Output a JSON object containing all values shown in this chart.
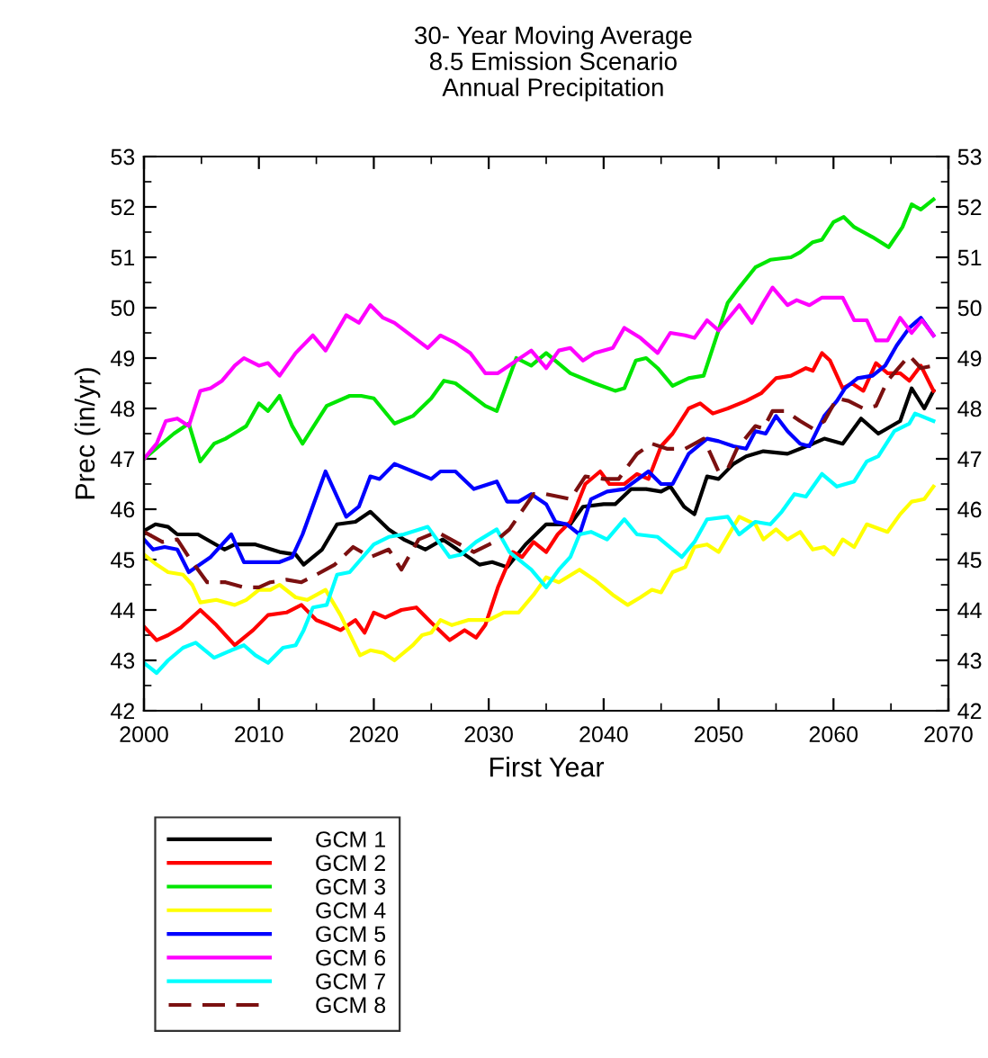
{
  "chart_data": {
    "type": "line",
    "title": "30- Year Moving Average\n8.5 Emission Scenario\nAnnual Precipitation",
    "xlabel": "First Year",
    "ylabel": "Prec (in/yr)",
    "xlim": [
      2000,
      2070
    ],
    "xticks": [
      2000,
      2010,
      2020,
      2030,
      2040,
      2050,
      2060,
      2070
    ],
    "ylim": [
      42,
      53
    ],
    "yticks": [
      42,
      43,
      44,
      45,
      46,
      47,
      48,
      49,
      50,
      51,
      52,
      53
    ],
    "y2lim": [
      42,
      53
    ],
    "y2ticks": [
      42,
      43,
      44,
      45,
      46,
      47,
      48,
      49,
      50,
      51,
      52,
      53
    ],
    "grid": false,
    "legend": "bottom left",
    "marker": "none",
    "series": [
      {
        "name": "GCM 1",
        "color": "#000000",
        "line_style": "solid",
        "x": [
          2000,
          2001,
          2002.1,
          2002.9,
          2004.7,
          2007,
          2007.9,
          2009.7,
          2011.8,
          2013.2,
          2013.9,
          2015.5,
          2016.8,
          2018.4,
          2019.7,
          2021.3,
          2022.6,
          2024.5,
          2026,
          2027.6,
          2029.2,
          2030.3,
          2031.6,
          2033.2,
          2035,
          2037.1,
          2038.2,
          2040,
          2041,
          2042.4,
          2043.7,
          2045,
          2045.8,
          2047,
          2047.9,
          2049,
          2050,
          2051.3,
          2052.4,
          2053.9,
          2056,
          2058.2,
          2059.2,
          2060.8,
          2062.4,
          2063.9,
          2065.8,
          2066.8,
          2067.9,
          2068.7
        ],
        "values": [
          45.57,
          45.7,
          45.65,
          45.5,
          45.5,
          45.2,
          45.3,
          45.3,
          45.15,
          45.1,
          44.9,
          45.2,
          45.7,
          45.75,
          45.95,
          45.6,
          45.4,
          45.2,
          45.4,
          45.15,
          44.9,
          44.95,
          44.85,
          45.3,
          45.7,
          45.7,
          46.05,
          46.1,
          46.1,
          46.4,
          46.4,
          46.35,
          46.45,
          46.05,
          45.9,
          46.65,
          46.6,
          46.9,
          47.05,
          47.15,
          47.1,
          47.3,
          47.4,
          47.3,
          47.8,
          47.5,
          47.75,
          48.4,
          48.0,
          48.35
        ]
      },
      {
        "name": "GCM 2",
        "color": "#ff0000",
        "line_style": "solid",
        "x": [
          2000,
          2001.1,
          2002.1,
          2003.2,
          2004.9,
          2006.3,
          2007.9,
          2009.5,
          2010.8,
          2012.4,
          2013.7,
          2015,
          2016.1,
          2017.1,
          2018.4,
          2019.2,
          2020,
          2021,
          2022.4,
          2023.7,
          2025,
          2026.6,
          2027.9,
          2028.9,
          2029.7,
          2030.8,
          2032.1,
          2032.9,
          2033.9,
          2035,
          2036,
          2037.1,
          2038.4,
          2039.7,
          2040.5,
          2041.8,
          2042.9,
          2043.9,
          2045,
          2046,
          2047.4,
          2048.4,
          2049.5,
          2050.8,
          2052.4,
          2053.7,
          2055,
          2056.3,
          2057.6,
          2058.2,
          2059,
          2059.7,
          2060.8,
          2061.6,
          2062.6,
          2063.7,
          2064.7,
          2065.8,
          2066.6,
          2067.6,
          2068.7
        ],
        "values": [
          43.67,
          43.4,
          43.5,
          43.65,
          44.0,
          43.7,
          43.3,
          43.6,
          43.9,
          43.95,
          44.1,
          43.8,
          43.7,
          43.6,
          43.8,
          43.55,
          43.95,
          43.85,
          44.0,
          44.05,
          43.75,
          43.4,
          43.6,
          43.45,
          43.7,
          44.45,
          45.15,
          45.05,
          45.35,
          45.15,
          45.5,
          45.75,
          46.5,
          46.75,
          46.5,
          46.5,
          46.7,
          46.6,
          47.25,
          47.5,
          48.0,
          48.1,
          47.9,
          48.0,
          48.15,
          48.3,
          48.6,
          48.65,
          48.8,
          48.75,
          49.1,
          48.95,
          48.4,
          48.5,
          48.35,
          48.9,
          48.7,
          48.7,
          48.55,
          48.85,
          48.35
        ]
      },
      {
        "name": "GCM 3",
        "color": "#00e600",
        "line_style": "solid",
        "x": [
          2000,
          2001.3,
          2002.6,
          2003.9,
          2004.9,
          2006.1,
          2007.1,
          2008.9,
          2010,
          2010.8,
          2011.8,
          2012.9,
          2013.8,
          2015.9,
          2017.9,
          2018.9,
          2020,
          2021.8,
          2023.4,
          2025,
          2026.1,
          2027.1,
          2029.7,
          2030.7,
          2032.4,
          2033.7,
          2035,
          2037.1,
          2039.2,
          2041,
          2041.8,
          2042.8,
          2043.7,
          2044.7,
          2046,
          2047.4,
          2048.7,
          2050,
          2050.8,
          2051.8,
          2053.2,
          2054.5,
          2056.3,
          2057.1,
          2058.2,
          2059,
          2060,
          2060.9,
          2061.8,
          2063.4,
          2064.8,
          2066,
          2066.8,
          2067.6,
          2068.7
        ],
        "values": [
          47.0,
          47.25,
          47.5,
          47.7,
          46.95,
          47.3,
          47.4,
          47.65,
          48.1,
          47.95,
          48.25,
          47.65,
          47.3,
          48.05,
          48.25,
          48.25,
          48.2,
          47.7,
          47.85,
          48.2,
          48.55,
          48.5,
          48.05,
          47.95,
          49.0,
          48.85,
          49.1,
          48.7,
          48.5,
          48.35,
          48.4,
          48.95,
          49.0,
          48.8,
          48.45,
          48.6,
          48.65,
          49.55,
          50.1,
          50.4,
          50.8,
          50.95,
          51.0,
          51.1,
          51.3,
          51.35,
          51.7,
          51.8,
          51.6,
          51.4,
          51.2,
          51.6,
          52.05,
          51.95,
          52.15
        ]
      },
      {
        "name": "GCM 4",
        "color": "#ffff00",
        "line_style": "solid",
        "x": [
          2000,
          2001.1,
          2002.1,
          2003.4,
          2004.2,
          2004.9,
          2006.3,
          2007.9,
          2008.9,
          2010,
          2011,
          2011.8,
          2013.2,
          2014.2,
          2015.8,
          2017.1,
          2018.8,
          2019.7,
          2020.8,
          2021.8,
          2023.4,
          2024.2,
          2025,
          2025.8,
          2026.8,
          2028.2,
          2030,
          2031.3,
          2032.6,
          2033.9,
          2035,
          2036.1,
          2037.9,
          2039.2,
          2040.8,
          2042.1,
          2043.2,
          2044.2,
          2045,
          2046,
          2047.1,
          2047.9,
          2049,
          2050,
          2051.8,
          2053.2,
          2053.9,
          2055,
          2056,
          2057.1,
          2058.2,
          2059.2,
          2060,
          2060.8,
          2061.8,
          2062.9,
          2064.7,
          2065.8,
          2066.8,
          2067.9,
          2068.7
        ],
        "values": [
          45.1,
          44.9,
          44.75,
          44.7,
          44.5,
          44.15,
          44.2,
          44.1,
          44.2,
          44.4,
          44.4,
          44.5,
          44.25,
          44.2,
          44.4,
          43.9,
          43.1,
          43.2,
          43.15,
          43.0,
          43.3,
          43.5,
          43.55,
          43.8,
          43.7,
          43.8,
          43.8,
          43.95,
          43.95,
          44.3,
          44.65,
          44.55,
          44.8,
          44.6,
          44.3,
          44.1,
          44.25,
          44.4,
          44.35,
          44.75,
          44.85,
          45.25,
          45.3,
          45.15,
          45.85,
          45.7,
          45.4,
          45.6,
          45.4,
          45.55,
          45.2,
          45.25,
          45.1,
          45.4,
          45.25,
          45.7,
          45.55,
          45.9,
          46.15,
          46.2,
          46.45
        ]
      },
      {
        "name": "GCM 5",
        "color": "#0000ff",
        "line_style": "solid",
        "x": [
          2000,
          2000.8,
          2001.8,
          2002.9,
          2003.9,
          2005.8,
          2007.6,
          2008.7,
          2011.8,
          2012.9,
          2013.8,
          2015.8,
          2017.6,
          2018.7,
          2019.7,
          2020.5,
          2021.8,
          2023.4,
          2025,
          2025.8,
          2027.1,
          2028.7,
          2030.7,
          2031.6,
          2032.6,
          2033.7,
          2035,
          2035.8,
          2036.8,
          2037.9,
          2038.9,
          2040.3,
          2041.8,
          2043.9,
          2045,
          2046,
          2047.4,
          2049,
          2050,
          2051.3,
          2052.4,
          2053.2,
          2054.1,
          2055,
          2056,
          2057.1,
          2057.9,
          2059.2,
          2060.3,
          2061,
          2062.1,
          2063.4,
          2064.5,
          2065.5,
          2066.6,
          2067.6,
          2068.7
        ],
        "values": [
          45.4,
          45.2,
          45.25,
          45.2,
          44.75,
          45.05,
          45.5,
          44.95,
          44.95,
          45.05,
          45.5,
          46.75,
          45.85,
          46.05,
          46.65,
          46.6,
          46.9,
          46.75,
          46.6,
          46.75,
          46.75,
          46.4,
          46.55,
          46.15,
          46.15,
          46.3,
          46.1,
          45.75,
          45.7,
          45.5,
          46.2,
          46.35,
          46.4,
          46.75,
          46.5,
          46.5,
          47.1,
          47.4,
          47.35,
          47.25,
          47.2,
          47.55,
          47.5,
          47.85,
          47.55,
          47.3,
          47.25,
          47.85,
          48.15,
          48.4,
          48.6,
          48.65,
          48.85,
          49.25,
          49.6,
          49.8,
          49.45
        ]
      },
      {
        "name": "GCM 6",
        "color": "#ff00ff",
        "line_style": "solid",
        "x": [
          2000,
          2001.1,
          2001.9,
          2002.9,
          2003.9,
          2004.9,
          2005.8,
          2006.8,
          2007.9,
          2008.7,
          2010,
          2010.8,
          2011.8,
          2013.2,
          2014.7,
          2015.8,
          2017.6,
          2018.7,
          2019.7,
          2020.8,
          2021.8,
          2024.7,
          2025.8,
          2027.1,
          2028.4,
          2029.7,
          2030.8,
          2032.1,
          2033.7,
          2035,
          2036.1,
          2037.1,
          2038.2,
          2039.2,
          2040.8,
          2041.8,
          2043.2,
          2044.7,
          2045.8,
          2047.1,
          2047.9,
          2049,
          2050,
          2051.8,
          2052.9,
          2053.9,
          2054.7,
          2056,
          2056.8,
          2057.9,
          2059,
          2060.8,
          2061.8,
          2062.9,
          2063.7,
          2064.7,
          2065.8,
          2066.8,
          2067.7,
          2068.7
        ],
        "values": [
          47.0,
          47.3,
          47.75,
          47.8,
          47.65,
          48.35,
          48.4,
          48.55,
          48.85,
          49.0,
          48.85,
          48.9,
          48.65,
          49.1,
          49.45,
          49.15,
          49.85,
          49.7,
          50.05,
          49.8,
          49.7,
          49.2,
          49.45,
          49.3,
          49.1,
          48.7,
          48.7,
          48.9,
          49.15,
          48.8,
          49.15,
          49.2,
          48.95,
          49.1,
          49.2,
          49.6,
          49.4,
          49.1,
          49.5,
          49.45,
          49.4,
          49.75,
          49.55,
          50.05,
          49.7,
          50.1,
          50.4,
          50.05,
          50.15,
          50.05,
          50.2,
          50.2,
          49.75,
          49.75,
          49.35,
          49.35,
          49.8,
          49.5,
          49.75,
          49.45
        ]
      },
      {
        "name": "GCM 7",
        "color": "#00ffff",
        "line_style": "solid",
        "x": [
          2000,
          2001.1,
          2002.1,
          2003.4,
          2004.5,
          2006.1,
          2007.6,
          2008.7,
          2009.7,
          2010.8,
          2012.1,
          2013.2,
          2013.9,
          2014.7,
          2015.9,
          2016.8,
          2017.9,
          2020,
          2021.3,
          2022.6,
          2024.7,
          2026.6,
          2027.6,
          2028.9,
          2030.7,
          2031.8,
          2033.7,
          2035,
          2036.1,
          2037.1,
          2037.9,
          2038.9,
          2040.3,
          2041.8,
          2042.9,
          2044.7,
          2046.8,
          2047.9,
          2049,
          2050.8,
          2051.8,
          2053.2,
          2054.5,
          2055.5,
          2056.6,
          2057.6,
          2059,
          2060.3,
          2061.8,
          2062.9,
          2063.9,
          2065.3,
          2066.6,
          2067.1,
          2068.7
        ],
        "values": [
          42.95,
          42.75,
          43.0,
          43.25,
          43.35,
          43.05,
          43.2,
          43.3,
          43.1,
          42.95,
          43.25,
          43.3,
          43.6,
          44.05,
          44.1,
          44.7,
          44.75,
          45.3,
          45.45,
          45.5,
          45.65,
          45.05,
          45.1,
          45.35,
          45.6,
          45.15,
          44.8,
          44.45,
          44.8,
          45.05,
          45.5,
          45.55,
          45.4,
          45.8,
          45.5,
          45.45,
          45.05,
          45.35,
          45.8,
          45.85,
          45.5,
          45.75,
          45.7,
          45.95,
          46.3,
          46.25,
          46.7,
          46.45,
          46.55,
          46.95,
          47.05,
          47.55,
          47.7,
          47.9,
          47.75
        ]
      },
      {
        "name": "GCM 8",
        "color": "#7b1010",
        "line_style": "dashed",
        "x": [
          2000,
          2001.6,
          2002.9,
          2003.9,
          2005.5,
          2007.1,
          2008.7,
          2010,
          2011,
          2012.4,
          2013.7,
          2015,
          2016.6,
          2018.2,
          2019.7,
          2021.3,
          2022.4,
          2023.9,
          2025.5,
          2027.1,
          2028.7,
          2030.5,
          2031.8,
          2033.9,
          2035,
          2037.1,
          2038.4,
          2040,
          2041.3,
          2042.9,
          2044.2,
          2045.5,
          2047.1,
          2048.7,
          2050,
          2050.8,
          2051.6,
          2053.2,
          2053.9,
          2054.7,
          2055.8,
          2057.1,
          2058.2,
          2059.2,
          2060.3,
          2061.3,
          2062.6,
          2063.7,
          2064.7,
          2066.6,
          2067.6,
          2068.7
        ],
        "values": [
          45.55,
          45.35,
          45.4,
          45.05,
          44.55,
          44.55,
          44.45,
          44.45,
          44.55,
          44.6,
          44.55,
          44.7,
          44.9,
          45.25,
          45.05,
          45.2,
          44.8,
          45.4,
          45.55,
          45.35,
          45.15,
          45.35,
          45.6,
          46.3,
          46.3,
          46.2,
          46.65,
          46.6,
          46.6,
          47.1,
          47.3,
          47.2,
          47.2,
          47.4,
          46.75,
          46.8,
          47.2,
          47.65,
          47.6,
          47.95,
          47.95,
          47.75,
          47.6,
          47.75,
          48.2,
          48.15,
          48.0,
          48.05,
          48.55,
          49.05,
          48.8,
          48.85
        ]
      }
    ]
  }
}
